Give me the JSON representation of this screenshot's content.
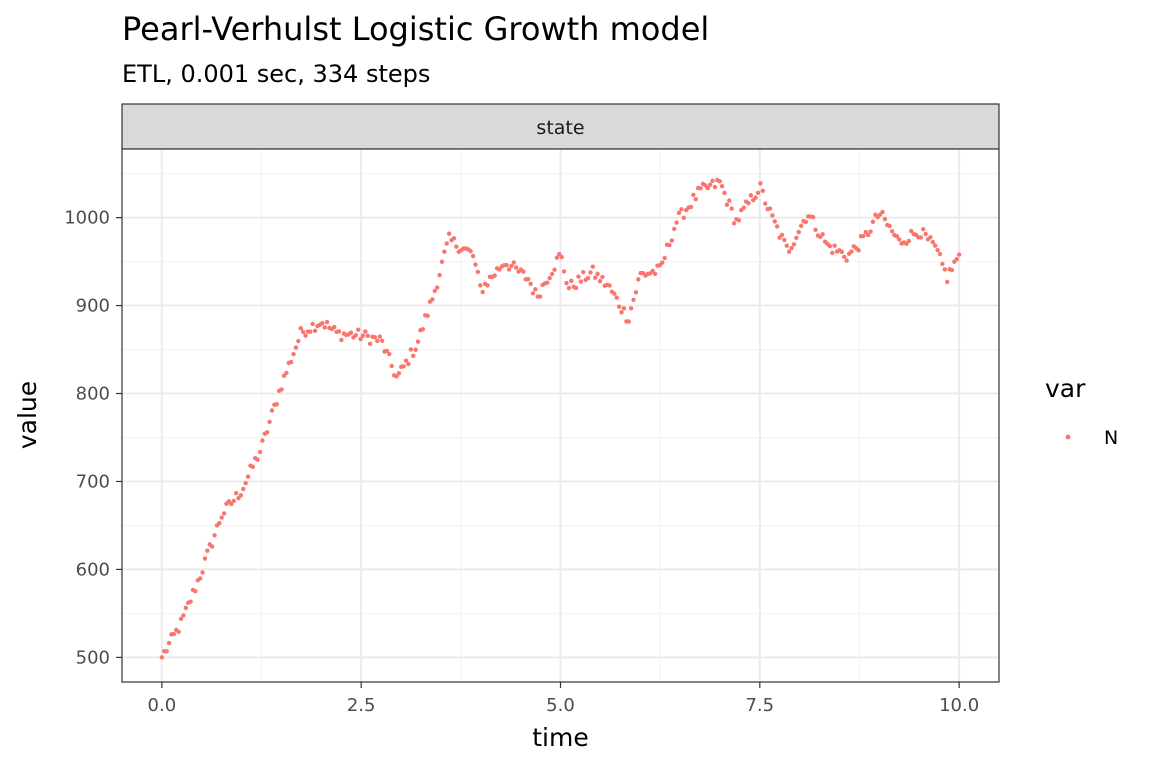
{
  "chart_data": {
    "type": "scatter",
    "title": "Pearl-Verhulst Logistic Growth model",
    "subtitle": "ETL, 0.001 sec, 334 steps",
    "facet_label": "state",
    "xlabel": "time",
    "ylabel": "value",
    "xlim": [
      -0.5,
      10.5
    ],
    "ylim": [
      472,
      1078
    ],
    "x_ticks": [
      0.0,
      2.5,
      5.0,
      7.5,
      10.0
    ],
    "x_tick_labels": [
      "0.0",
      "2.5",
      "5.0",
      "7.5",
      "10.0"
    ],
    "y_ticks": [
      500,
      600,
      700,
      800,
      900,
      1000
    ],
    "y_tick_labels": [
      "500",
      "600",
      "700",
      "800",
      "900",
      "1000"
    ],
    "grid": true,
    "legend": {
      "title": "var",
      "position": "right",
      "entries": [
        "N"
      ]
    },
    "colors": {
      "N": "#F8766D"
    },
    "series": [
      {
        "name": "N",
        "x_start": 0.0,
        "x_end": 10.0,
        "anchors": [
          [
            0.0,
            500
          ],
          [
            0.25,
            540
          ],
          [
            0.5,
            598
          ],
          [
            0.75,
            662
          ],
          [
            1.0,
            690
          ],
          [
            1.25,
            738
          ],
          [
            1.5,
            810
          ],
          [
            1.75,
            870
          ],
          [
            2.0,
            882
          ],
          [
            2.2,
            868
          ],
          [
            2.5,
            866
          ],
          [
            2.75,
            860
          ],
          [
            2.95,
            817
          ],
          [
            3.2,
            856
          ],
          [
            3.4,
            910
          ],
          [
            3.6,
            975
          ],
          [
            3.9,
            958
          ],
          [
            4.0,
            918
          ],
          [
            4.3,
            950
          ],
          [
            4.6,
            930
          ],
          [
            4.7,
            910
          ],
          [
            5.0,
            958
          ],
          [
            5.1,
            920
          ],
          [
            5.4,
            938
          ],
          [
            5.6,
            922
          ],
          [
            5.85,
            885
          ],
          [
            6.0,
            935
          ],
          [
            6.25,
            940
          ],
          [
            6.45,
            995
          ],
          [
            6.75,
            1030
          ],
          [
            7.0,
            1040
          ],
          [
            7.2,
            995
          ],
          [
            7.5,
            1035
          ],
          [
            7.65,
            1000
          ],
          [
            7.85,
            962
          ],
          [
            8.1,
            1005
          ],
          [
            8.35,
            968
          ],
          [
            8.6,
            956
          ],
          [
            8.8,
            975
          ],
          [
            9.0,
            1005
          ],
          [
            9.25,
            972
          ],
          [
            9.5,
            985
          ],
          [
            9.7,
            965
          ],
          [
            9.85,
            932
          ],
          [
            10.0,
            958
          ]
        ]
      }
    ]
  }
}
